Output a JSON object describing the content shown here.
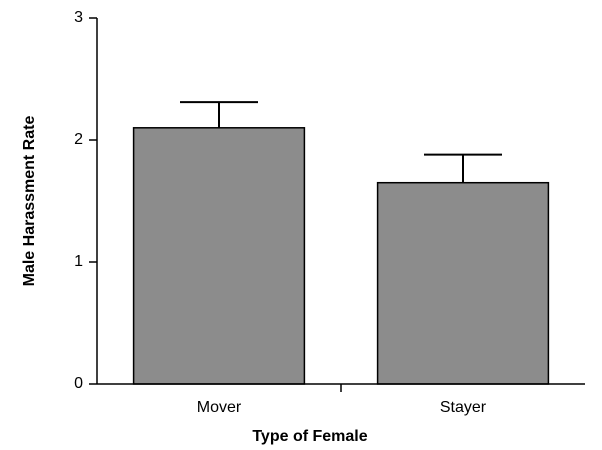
{
  "chart_data": {
    "type": "bar",
    "x_label": "Type of Female",
    "y_label": "Male Harassment Rate",
    "categories": [
      "Mover",
      "Stayer"
    ],
    "values": [
      2.1,
      1.65
    ],
    "errors": [
      0.21,
      0.23
    ],
    "color": "#8c8c8c",
    "ylim": [
      0,
      3
    ],
    "yticks": [
      0,
      1,
      2,
      3
    ],
    "grid": false
  }
}
